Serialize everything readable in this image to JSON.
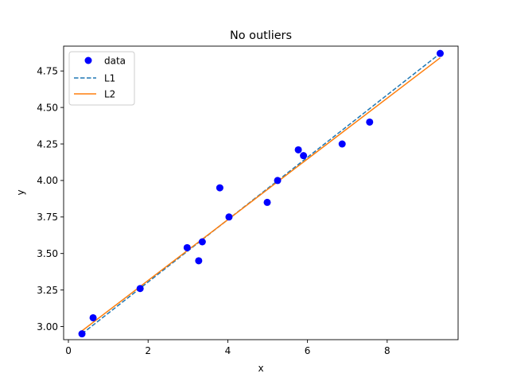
{
  "chart_data": {
    "type": "line",
    "title": "No outliers",
    "xlabel": "x",
    "ylabel": "y",
    "xlim": [
      -0.12,
      9.78
    ],
    "ylim": [
      2.91,
      4.92
    ],
    "xticks": [
      0,
      2,
      4,
      6,
      8
    ],
    "xtick_labels": [
      "0",
      "2",
      "4",
      "6",
      "8"
    ],
    "yticks": [
      3.0,
      3.25,
      3.5,
      3.75,
      4.0,
      4.25,
      4.5,
      4.75
    ],
    "ytick_labels": [
      "3.00",
      "3.25",
      "3.50",
      "3.75",
      "4.00",
      "4.25",
      "4.50",
      "4.75"
    ],
    "grid": false,
    "legend_placement": "upper-left",
    "series": [
      {
        "name": "data",
        "kind": "scatter",
        "color": "#0000ff",
        "points": [
          [
            0.34,
            2.95
          ],
          [
            0.62,
            3.06
          ],
          [
            1.8,
            3.26
          ],
          [
            2.98,
            3.54
          ],
          [
            3.27,
            3.45
          ],
          [
            3.36,
            3.58
          ],
          [
            3.8,
            3.95
          ],
          [
            4.03,
            3.75
          ],
          [
            4.99,
            3.85
          ],
          [
            5.25,
            4.0
          ],
          [
            5.77,
            4.21
          ],
          [
            5.9,
            4.17
          ],
          [
            6.87,
            4.25
          ],
          [
            7.56,
            4.4
          ],
          [
            9.33,
            4.87
          ]
        ]
      },
      {
        "name": "L1",
        "kind": "line",
        "style": "dashed",
        "color": "#1f77b4",
        "points": [
          [
            0.34,
            2.95
          ],
          [
            9.33,
            4.87
          ]
        ]
      },
      {
        "name": "L2",
        "kind": "line",
        "style": "solid",
        "color": "#ff7f0e",
        "points": [
          [
            0.34,
            2.97
          ],
          [
            9.33,
            4.84
          ]
        ]
      }
    ]
  }
}
